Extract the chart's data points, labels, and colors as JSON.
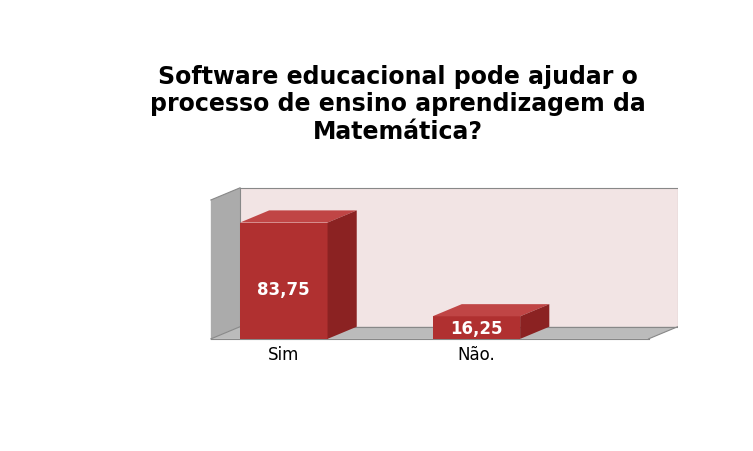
{
  "title": "Software educacional pode ajudar o\nprocesso de ensino aprendizagem da\nMatemática?",
  "categories": [
    "Sim",
    "Não."
  ],
  "values": [
    83.75,
    16.25
  ],
  "labels": [
    "83,75",
    "16,25"
  ],
  "bar_color_front": "#B03030",
  "bar_color_top": "#C04545",
  "bar_color_side": "#8B2222",
  "background_wall": "#F2E4E4",
  "left_wall_color": "#ABABAB",
  "floor_color": "#BBBBBB",
  "title_fontsize": 17,
  "label_fontsize": 12,
  "tick_fontsize": 12,
  "fig_bg": "#FFFFFF"
}
